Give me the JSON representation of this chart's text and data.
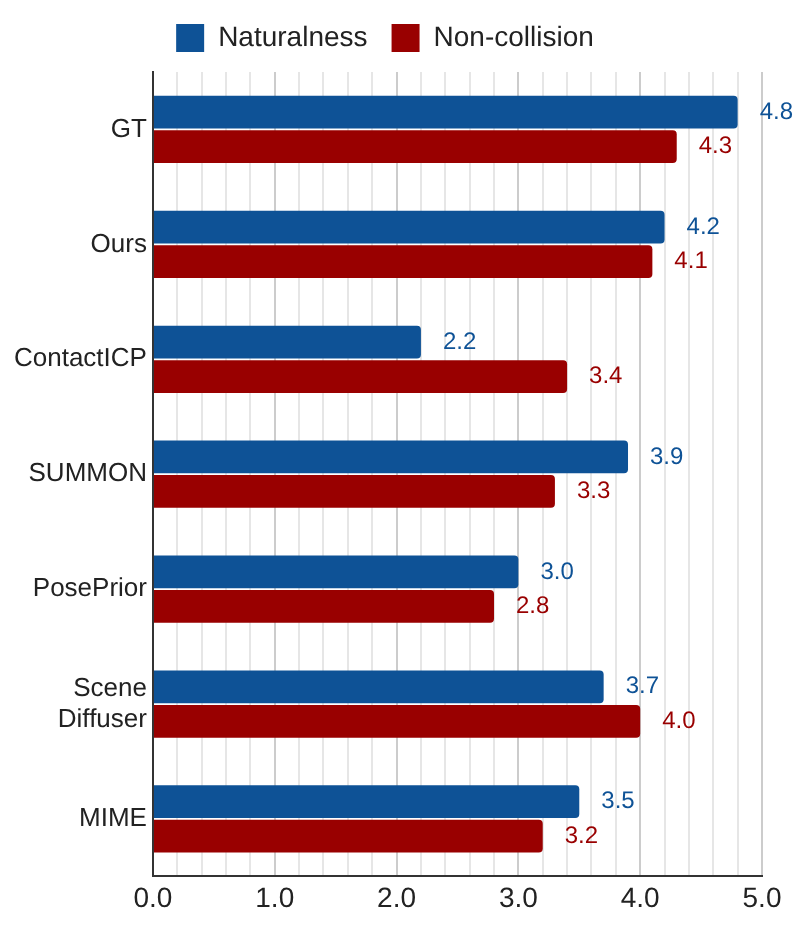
{
  "chart_data": {
    "type": "bar",
    "orientation": "horizontal",
    "categories": [
      "GT",
      "Ours",
      "ContactICP",
      "SUMMON",
      "PosePrior",
      "Scene Diffuser",
      "MIME"
    ],
    "series": [
      {
        "name": "Naturalness",
        "color": "#0e5296",
        "values": [
          4.8,
          4.2,
          2.2,
          3.9,
          3.0,
          3.7,
          3.5
        ],
        "value_labels": [
          "4.8",
          "4.2",
          "2.2",
          "3.9",
          "3.0",
          "3.7",
          "3.5"
        ]
      },
      {
        "name": "Non-collision",
        "color": "#990000",
        "values": [
          4.3,
          4.1,
          3.4,
          3.3,
          2.8,
          4.0,
          3.2
        ],
        "value_labels": [
          "4.3",
          "4.1",
          "3.4",
          "3.3",
          "2.8",
          "4.0",
          "3.2"
        ]
      }
    ],
    "xlim": [
      0,
      5
    ],
    "xticks": [
      "0.0",
      {
        "value": 0.2,
        "label": null
      },
      {
        "value": 0.4,
        "label": null
      },
      {
        "value": 0.6,
        "label": null
      },
      {
        "value": 0.8,
        "label": null
      },
      {
        "value": 1,
        "label": "1.0"
      },
      {
        "value": 1.2,
        "label": null
      },
      {
        "value": 1.4,
        "label": null
      },
      {
        "value": 1.6,
        "label": null
      },
      {
        "value": 1.8,
        "label": null
      },
      {
        "value": 2,
        "label": "2.0"
      },
      {
        "value": 2.2,
        "label": null
      },
      {
        "value": 2.4,
        "label": null
      },
      {
        "value": 2.6,
        "label": null
      },
      {
        "value": 2.8,
        "label": null
      },
      {
        "value": 3,
        "label": "3.0"
      },
      {
        "value": 3.2,
        "label": null
      },
      {
        "value": 3.4,
        "label": null
      },
      {
        "value": 3.6,
        "label": null
      },
      {
        "value": 3.8,
        "label": null
      },
      {
        "value": 4,
        "label": "4.0"
      },
      {
        "value": 4.2,
        "label": null
      },
      {
        "value": 4.4,
        "label": null
      },
      {
        "value": 4.6,
        "label": null
      },
      {
        "value": 4.8,
        "label": null
      },
      {
        "value": 5,
        "label": "5.0"
      }
    ],
    "grid": "x",
    "legend": "top"
  }
}
